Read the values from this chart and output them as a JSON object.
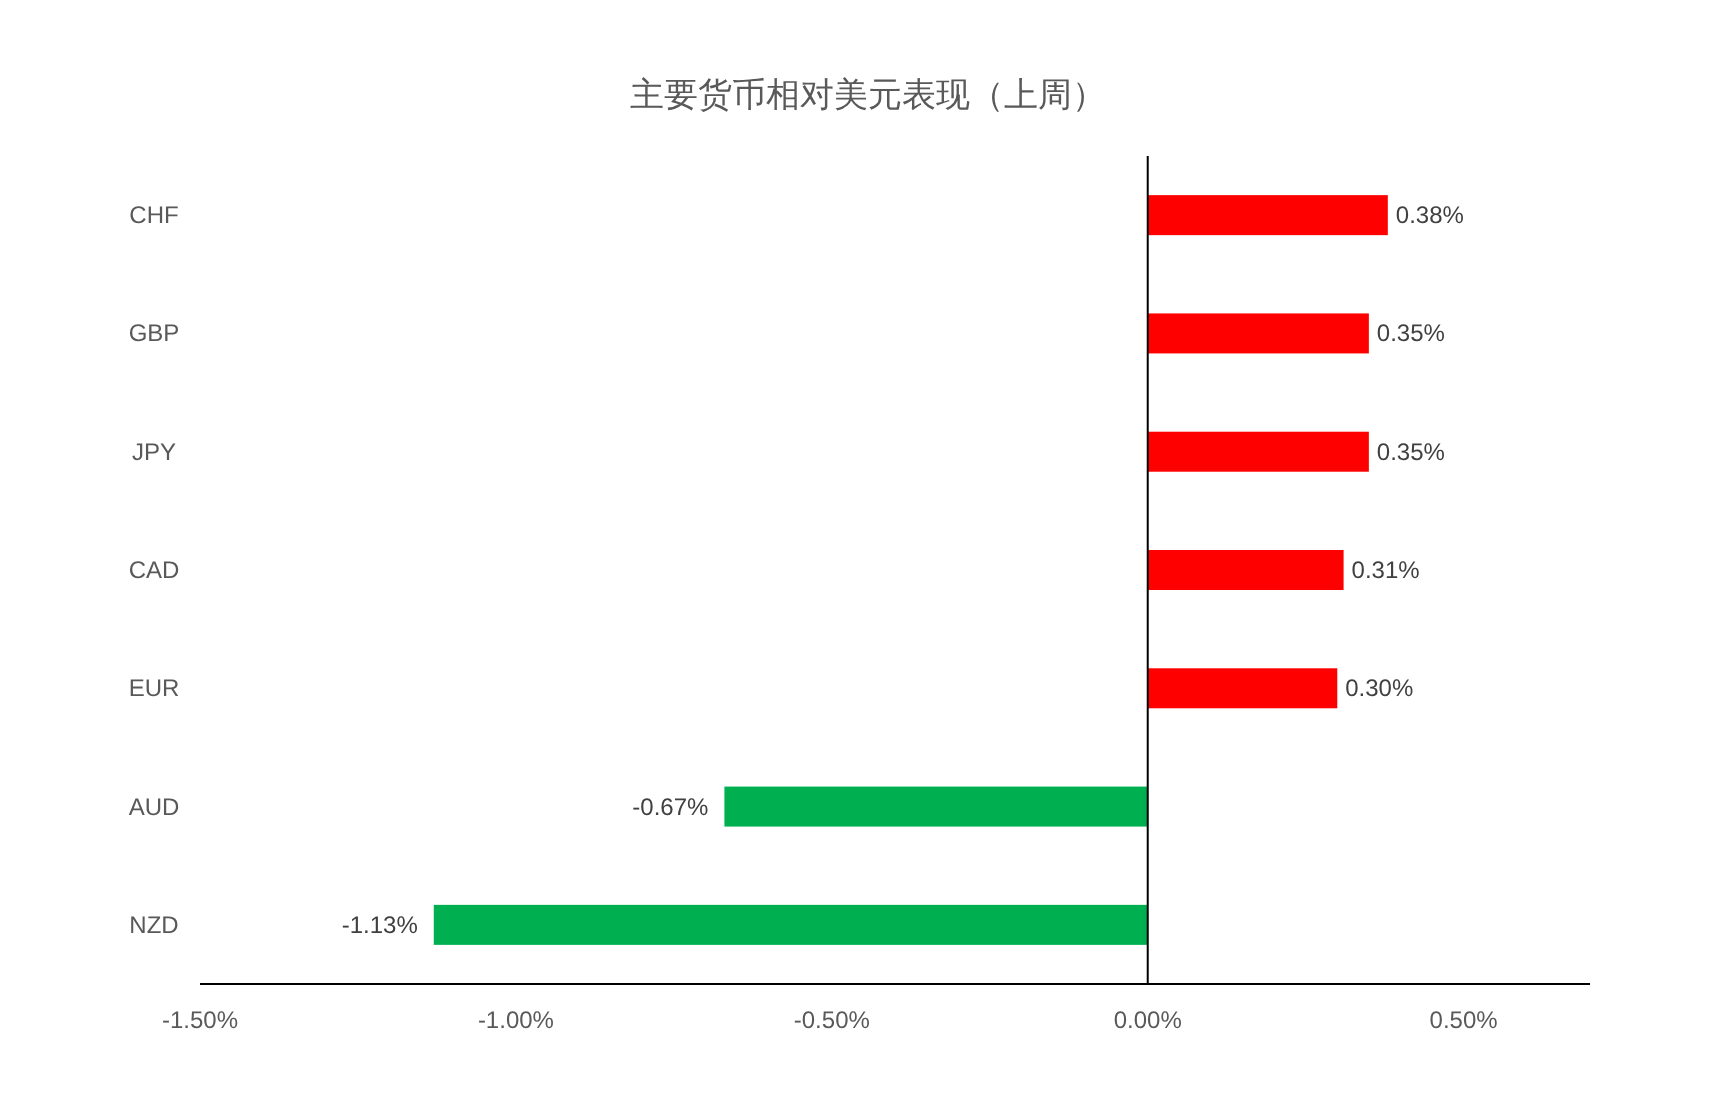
{
  "chart_data": {
    "type": "bar",
    "orientation": "horizontal",
    "title": "主要货币相对美元表现（上周）",
    "categories": [
      "CHF",
      "GBP",
      "JPY",
      "CAD",
      "EUR",
      "AUD",
      "NZD"
    ],
    "values": [
      0.38,
      0.35,
      0.35,
      0.31,
      0.3,
      -0.67,
      -1.13
    ],
    "colors": [
      "#ff0000",
      "#ff0000",
      "#ff0000",
      "#ff0000",
      "#ff0000",
      "#00b050",
      "#00b050"
    ],
    "value_labels": [
      "0.38%",
      "0.35%",
      "0.35%",
      "0.31%",
      "0.30%",
      "-0.67%",
      "-1.13%"
    ],
    "xlim": [
      -1.5,
      0.7
    ],
    "xticks": [
      {
        "value": -1.5,
        "label": "-1.50%"
      },
      {
        "value": -1.0,
        "label": "-1.00%"
      },
      {
        "value": -0.5,
        "label": "-0.50%"
      },
      {
        "value": 0,
        "label": "0.00%"
      },
      {
        "value": 0.5,
        "label": "0.50%"
      }
    ]
  }
}
